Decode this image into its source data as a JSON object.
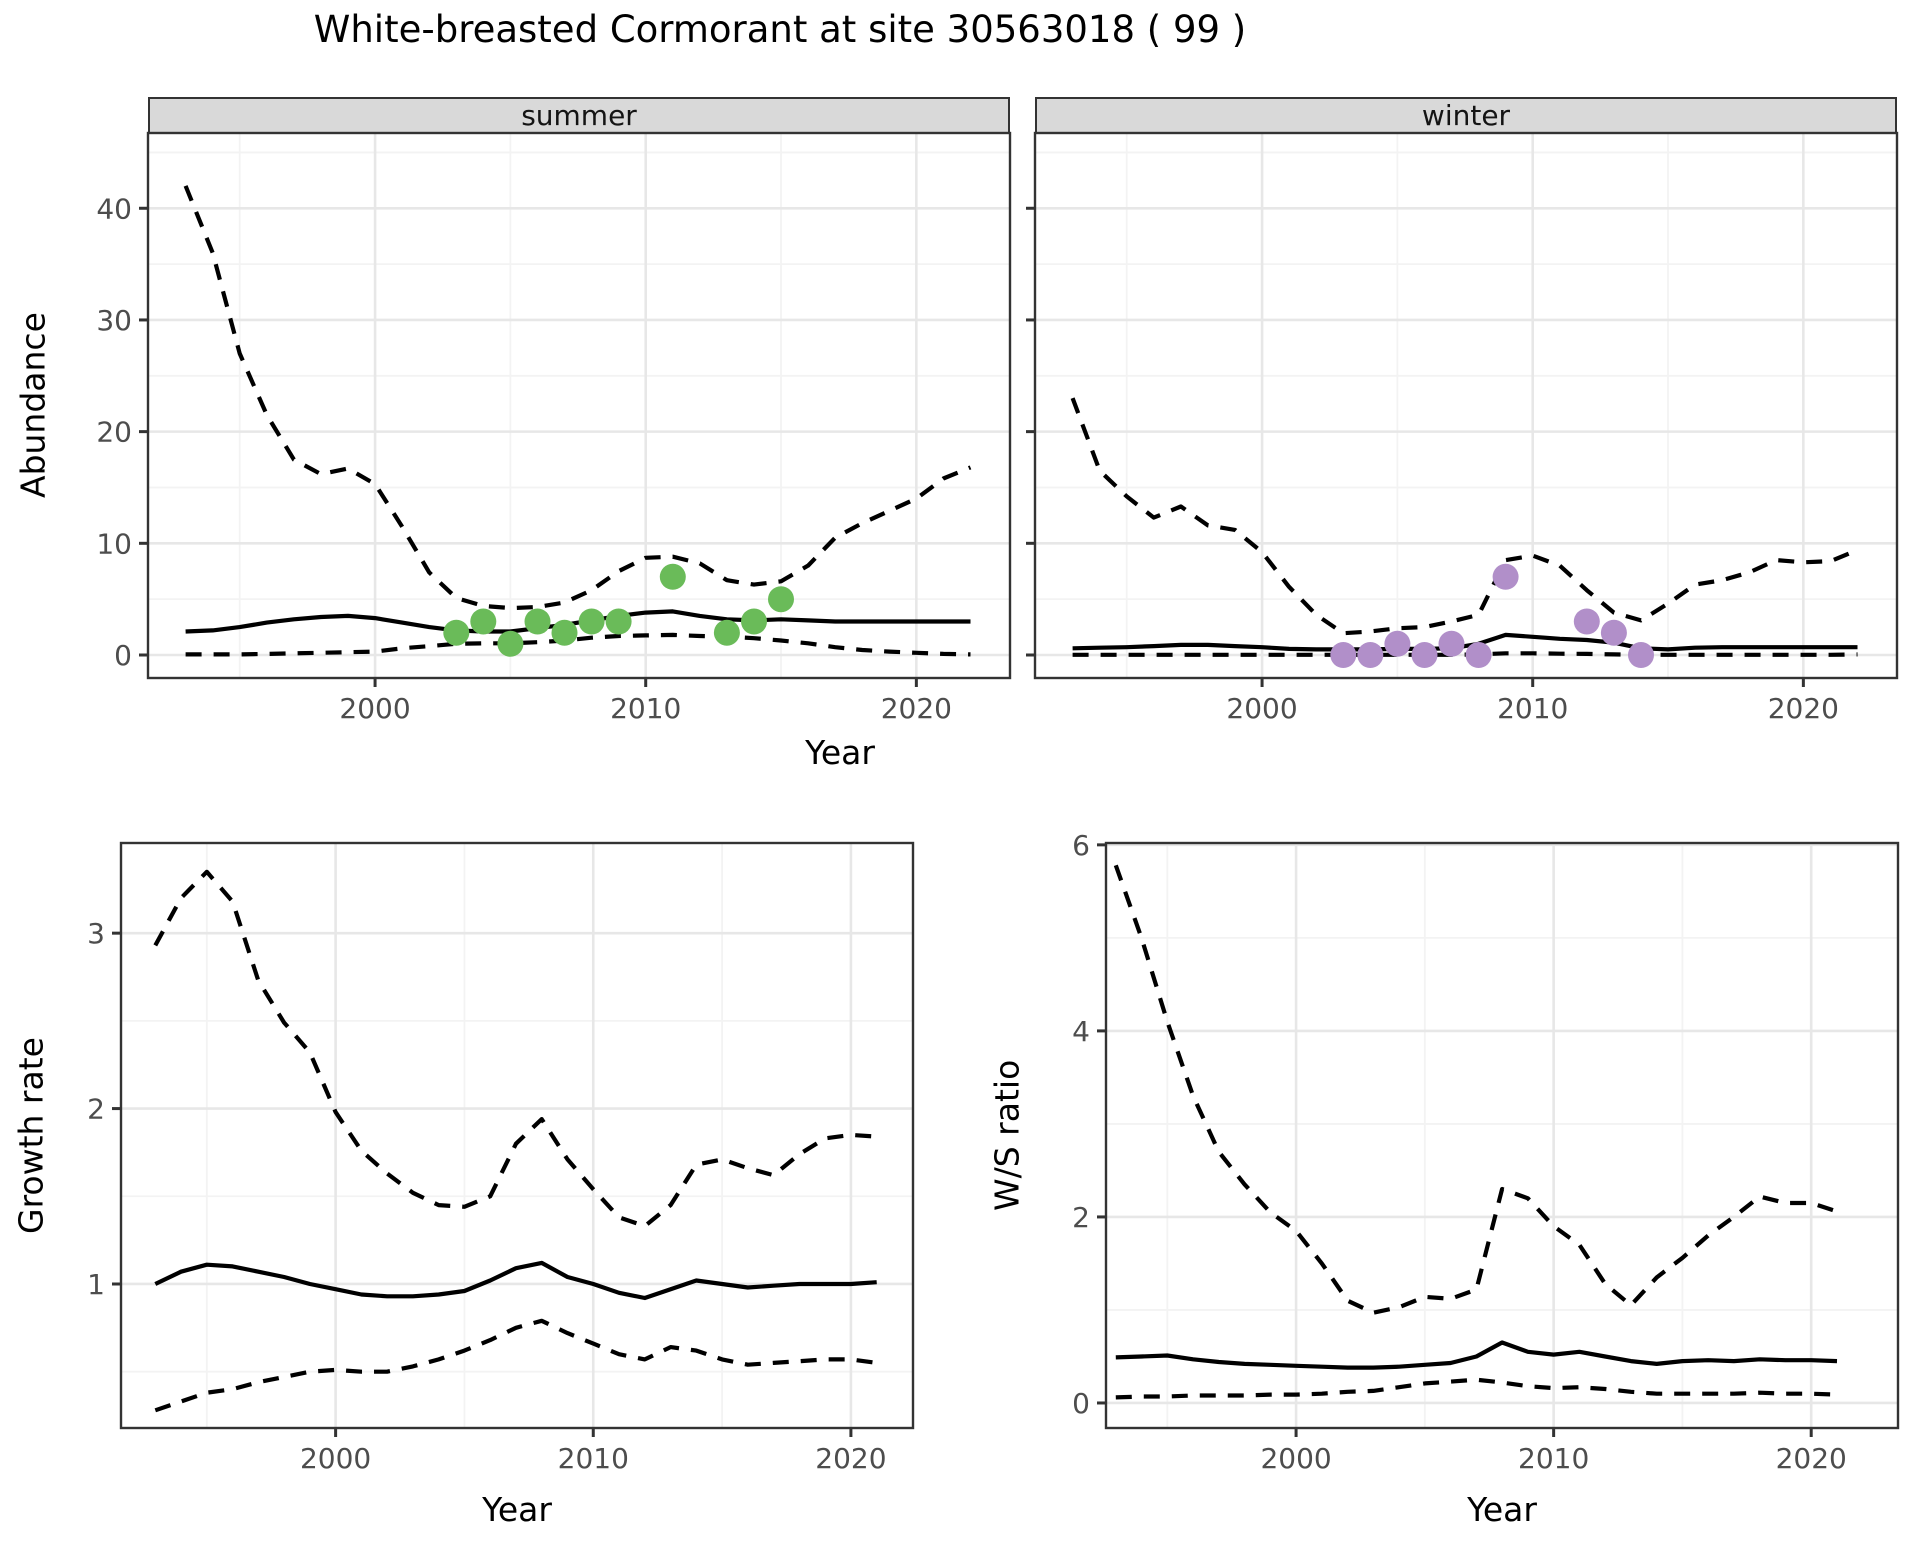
{
  "title": "White-breasted Cormorant at site 30563018 ( 99 )",
  "colors": {
    "summer_points": "#6ABB59",
    "winter_points": "#B18FC9",
    "line": "#000000",
    "strip_bg": "#D9D9D9",
    "panel_border": "#333333",
    "grid_major": "#E7E7E7",
    "grid_minor": "#F3F3F3",
    "axis_text": "#4D4D4D"
  },
  "chart_data": [
    {
      "id": "abundance-summer",
      "type": "line",
      "facet_label": "summer",
      "xlabel": "Year",
      "ylabel": "Abundance",
      "legend_position": "none",
      "grid": true,
      "x": [
        1993,
        1994,
        1995,
        1996,
        1997,
        1998,
        1999,
        2000,
        2001,
        2002,
        2003,
        2004,
        2005,
        2006,
        2007,
        2008,
        2009,
        2010,
        2011,
        2012,
        2013,
        2014,
        2015,
        2016,
        2017,
        2018,
        2019,
        2020,
        2021,
        2022
      ],
      "series": [
        {
          "name": "upper_95ci",
          "style": "dashed",
          "values": [
            42,
            36,
            27,
            21.5,
            17.5,
            16.2,
            16.7,
            15.3,
            11.5,
            7.4,
            5.1,
            4.4,
            4.2,
            4.3,
            4.7,
            5.8,
            7.5,
            8.7,
            8.8,
            8.2,
            6.7,
            6.3,
            6.6,
            8.0,
            10.5,
            11.8,
            12.9,
            14.0,
            15.8,
            16.8
          ]
        },
        {
          "name": "median",
          "style": "solid",
          "values": [
            2.1,
            2.2,
            2.5,
            2.9,
            3.2,
            3.4,
            3.5,
            3.3,
            2.9,
            2.5,
            2.2,
            2.1,
            2.1,
            2.4,
            2.7,
            3.1,
            3.5,
            3.8,
            3.9,
            3.5,
            3.2,
            3.1,
            3.2,
            3.1,
            3.0,
            3.0,
            3.0,
            3.0,
            3.0,
            3.0
          ]
        },
        {
          "name": "lower_95ci",
          "style": "dashed",
          "values": [
            0.05,
            0.05,
            0.05,
            0.1,
            0.15,
            0.2,
            0.25,
            0.3,
            0.6,
            0.8,
            1.0,
            1.05,
            1.05,
            1.15,
            1.3,
            1.55,
            1.7,
            1.75,
            1.8,
            1.7,
            1.65,
            1.5,
            1.3,
            1.05,
            0.7,
            0.45,
            0.3,
            0.2,
            0.1,
            0.05
          ]
        }
      ],
      "points": {
        "name": "observed-counts-summer",
        "color_key": "summer_points",
        "x": [
          2003,
          2004,
          2005,
          2006,
          2007,
          2008,
          2009,
          2011,
          2013,
          2014,
          2015
        ],
        "y": [
          2,
          3,
          1,
          3,
          2,
          3,
          3,
          7,
          2,
          3,
          5
        ]
      },
      "xticks": [
        2000,
        2010,
        2020
      ],
      "xticks_minor": [
        1995,
        2005,
        2015
      ],
      "yticks": [
        0,
        10,
        20,
        30,
        40
      ],
      "yticks_minor": [
        5,
        15,
        25,
        35,
        45
      ],
      "xlim": [
        1991.61,
        2023.46
      ],
      "ylim": [
        -2.06,
        46.74
      ],
      "show_ytick_labels": true,
      "show_xtick_labels": true
    },
    {
      "id": "abundance-winter",
      "type": "line",
      "facet_label": "winter",
      "xlabel": "",
      "ylabel": "",
      "legend_position": "none",
      "grid": true,
      "x": [
        1993,
        1994,
        1995,
        1996,
        1997,
        1998,
        1999,
        2000,
        2001,
        2002,
        2003,
        2004,
        2005,
        2006,
        2007,
        2008,
        2009,
        2010,
        2011,
        2012,
        2013,
        2014,
        2015,
        2016,
        2017,
        2018,
        2019,
        2020,
        2021,
        2022
      ],
      "series": [
        {
          "name": "upper_95ci",
          "style": "dashed",
          "values": [
            23,
            16.5,
            14.2,
            12.3,
            13.3,
            11.6,
            11.2,
            9.2,
            6.1,
            3.6,
            1.95,
            2.1,
            2.4,
            2.5,
            3.0,
            3.6,
            8.5,
            8.9,
            8.0,
            5.8,
            3.8,
            3.1,
            4.6,
            6.3,
            6.7,
            7.4,
            8.5,
            8.3,
            8.4,
            9.4
          ]
        },
        {
          "name": "median",
          "style": "solid",
          "values": [
            0.6,
            0.65,
            0.7,
            0.8,
            0.9,
            0.9,
            0.8,
            0.7,
            0.55,
            0.5,
            0.5,
            0.5,
            0.55,
            0.55,
            0.6,
            1.0,
            1.8,
            1.63,
            1.45,
            1.34,
            1.1,
            0.6,
            0.5,
            0.65,
            0.7,
            0.7,
            0.7,
            0.7,
            0.7,
            0.7
          ]
        },
        {
          "name": "lower_95ci",
          "style": "dashed",
          "values": [
            0.02,
            0.02,
            0.02,
            0.02,
            0.02,
            0.02,
            0.02,
            0.02,
            0.02,
            0.02,
            0.02,
            0.02,
            0.02,
            0.02,
            0.02,
            0.05,
            0.15,
            0.15,
            0.12,
            0.1,
            0.05,
            0.02,
            0.02,
            0.02,
            0.02,
            0.02,
            0.02,
            0.02,
            0.02,
            0.05
          ]
        }
      ],
      "points": {
        "name": "observed-counts-winter",
        "color_key": "winter_points",
        "x": [
          2003,
          2004,
          2005,
          2006,
          2007,
          2008,
          2009,
          2012,
          2013,
          2014
        ],
        "y": [
          0,
          0,
          1,
          0,
          1,
          0,
          7,
          3,
          2,
          0
        ]
      },
      "xticks": [
        2000,
        2010,
        2020
      ],
      "xticks_minor": [
        1995,
        2005,
        2015
      ],
      "yticks": [
        0,
        10,
        20,
        30,
        40
      ],
      "yticks_minor": [
        5,
        15,
        25,
        35,
        45
      ],
      "xlim": [
        1991.61,
        2023.46
      ],
      "ylim": [
        -2.06,
        46.74
      ],
      "show_ytick_labels": false,
      "show_xtick_labels": true
    },
    {
      "id": "growth-rate",
      "type": "line",
      "facet_label": "",
      "xlabel": "Year",
      "ylabel": "Growth rate",
      "legend_position": "none",
      "grid": true,
      "x": [
        1993,
        1994,
        1995,
        1996,
        1997,
        1998,
        1999,
        2000,
        2001,
        2002,
        2003,
        2004,
        2005,
        2006,
        2007,
        2008,
        2009,
        2010,
        2011,
        2012,
        2013,
        2014,
        2015,
        2016,
        2017,
        2018,
        2019,
        2020,
        2021
      ],
      "series": [
        {
          "name": "upper_95ci",
          "style": "dashed",
          "values": [
            2.93,
            3.2,
            3.35,
            3.18,
            2.73,
            2.49,
            2.32,
            1.98,
            1.76,
            1.63,
            1.52,
            1.45,
            1.44,
            1.5,
            1.8,
            1.94,
            1.71,
            1.54,
            1.38,
            1.33,
            1.45,
            1.68,
            1.71,
            1.66,
            1.62,
            1.74,
            1.83,
            1.85,
            1.84
          ]
        },
        {
          "name": "median",
          "style": "solid",
          "values": [
            1.0,
            1.07,
            1.11,
            1.1,
            1.07,
            1.04,
            1.0,
            0.97,
            0.94,
            0.93,
            0.93,
            0.94,
            0.96,
            1.02,
            1.09,
            1.12,
            1.04,
            1.0,
            0.95,
            0.92,
            0.97,
            1.02,
            1.0,
            0.98,
            0.99,
            1.0,
            1.0,
            1.0,
            1.01
          ]
        },
        {
          "name": "lower_95ci",
          "style": "dashed",
          "values": [
            0.28,
            0.33,
            0.38,
            0.4,
            0.44,
            0.47,
            0.5,
            0.51,
            0.5,
            0.5,
            0.53,
            0.57,
            0.62,
            0.68,
            0.75,
            0.79,
            0.72,
            0.66,
            0.6,
            0.57,
            0.64,
            0.62,
            0.57,
            0.54,
            0.55,
            0.56,
            0.57,
            0.57,
            0.55
          ]
        }
      ],
      "points": null,
      "xticks": [
        2000,
        2010,
        2020
      ],
      "xticks_minor": [
        1995,
        2005,
        2015
      ],
      "yticks": [
        1,
        2,
        3
      ],
      "yticks_minor": [
        0.5,
        1.5,
        2.5
      ],
      "xlim": [
        1991.67,
        2022.41
      ],
      "ylim": [
        0.179,
        3.514
      ],
      "show_ytick_labels": true,
      "show_xtick_labels": true
    },
    {
      "id": "ws-ratio",
      "type": "line",
      "facet_label": "",
      "xlabel": "Year",
      "ylabel": "W/S ratio",
      "legend_position": "none",
      "grid": true,
      "x": [
        1993,
        1994,
        1995,
        1996,
        1997,
        1998,
        1999,
        2000,
        2001,
        2002,
        2003,
        2004,
        2005,
        2006,
        2007,
        2008,
        2009,
        2010,
        2011,
        2012,
        2013,
        2014,
        2015,
        2016,
        2017,
        2018,
        2019,
        2020,
        2021
      ],
      "series": [
        {
          "name": "upper_95ci",
          "style": "dashed",
          "values": [
            5.78,
            5.0,
            4.1,
            3.3,
            2.7,
            2.35,
            2.05,
            1.85,
            1.5,
            1.1,
            0.97,
            1.03,
            1.14,
            1.12,
            1.22,
            2.3,
            2.2,
            1.9,
            1.7,
            1.28,
            1.05,
            1.35,
            1.56,
            1.8,
            2.0,
            2.22,
            2.15,
            2.15,
            2.06
          ]
        },
        {
          "name": "median",
          "style": "solid",
          "values": [
            0.49,
            0.5,
            0.51,
            0.47,
            0.44,
            0.42,
            0.41,
            0.4,
            0.39,
            0.38,
            0.38,
            0.39,
            0.41,
            0.43,
            0.5,
            0.65,
            0.55,
            0.52,
            0.55,
            0.5,
            0.45,
            0.42,
            0.45,
            0.46,
            0.45,
            0.47,
            0.46,
            0.46,
            0.45
          ]
        },
        {
          "name": "lower_95ci",
          "style": "dashed",
          "values": [
            0.06,
            0.07,
            0.07,
            0.08,
            0.08,
            0.08,
            0.09,
            0.09,
            0.1,
            0.12,
            0.13,
            0.17,
            0.21,
            0.23,
            0.25,
            0.22,
            0.18,
            0.16,
            0.17,
            0.15,
            0.12,
            0.1,
            0.1,
            0.1,
            0.1,
            0.11,
            0.1,
            0.1,
            0.09
          ]
        }
      ],
      "points": null,
      "xticks": [
        2000,
        2010,
        2020
      ],
      "xticks_minor": [
        1995,
        2005,
        2015
      ],
      "yticks": [
        0,
        2,
        4,
        6
      ],
      "yticks_minor": [
        1,
        3,
        5
      ],
      "xlim": [
        1992.62,
        2023.37
      ],
      "ylim": [
        -0.269,
        6.02
      ],
      "show_ytick_labels": true,
      "show_xtick_labels": true
    }
  ]
}
